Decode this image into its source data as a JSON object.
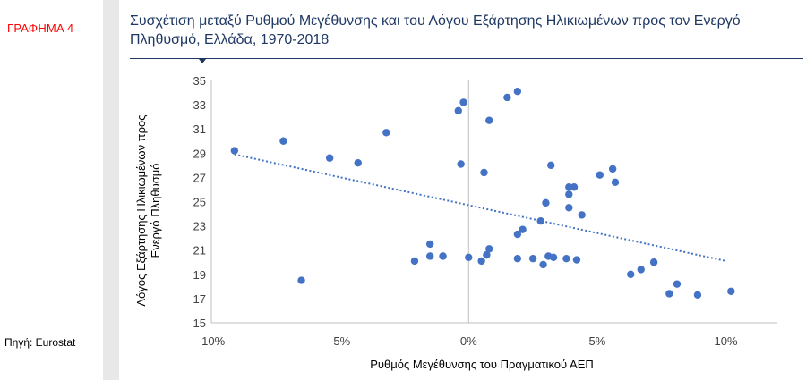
{
  "sidebar": {
    "figure_label": "ΓΡΑΦΗΜΑ 4",
    "source": "Πηγή: Eurostat"
  },
  "colors": {
    "figure_label": "#ff0000",
    "title": "#1f3864",
    "points": "#4472c4",
    "trendline": "#4472c4",
    "gutter": "#e8e8e8"
  },
  "chart_data": {
    "type": "scatter",
    "title": "Συσχέτιση μεταξύ Ρυθμού Μεγέθυνσης και του Λόγου Εξάρτησης Ηλικιωμένων προς τον Ενεργό Πληθυσμό, Ελλάδα, 1970-2018",
    "xlabel": "Ρυθμός Μεγέθυνσης  του Πραγματικού ΑΕΠ",
    "ylabel_lines": [
      "Λόγος Εξάρτησης Ηλικιωμένων προς",
      "Ενεργό Πληθυσμό"
    ],
    "xlim": [
      -0.1,
      0.12
    ],
    "ylim": [
      15,
      35
    ],
    "x_ticks": [
      -0.1,
      -0.05,
      0.0,
      0.05,
      0.1
    ],
    "x_tick_labels": [
      "-10%",
      "-5%",
      "0%",
      "5%",
      "10%"
    ],
    "y_ticks": [
      15,
      17,
      19,
      21,
      23,
      25,
      27,
      29,
      31,
      33,
      35
    ],
    "y_tick_labels": [
      "15",
      "17",
      "19",
      "21",
      "23",
      "25",
      "27",
      "29",
      "31",
      "33",
      "35"
    ],
    "grid": false,
    "legend": "none",
    "trendline": {
      "style": "dotted",
      "x": [
        -0.091,
        0.1
      ],
      "y": [
        28.9,
        20.1
      ]
    },
    "points": [
      [
        -0.091,
        29.2
      ],
      [
        -0.072,
        30.0
      ],
      [
        -0.065,
        18.5
      ],
      [
        -0.054,
        28.6
      ],
      [
        -0.043,
        28.2
      ],
      [
        -0.032,
        30.7
      ],
      [
        -0.021,
        20.1
      ],
      [
        -0.015,
        21.5
      ],
      [
        -0.015,
        20.5
      ],
      [
        -0.01,
        20.5
      ],
      [
        -0.01,
        20.5
      ],
      [
        0.0,
        20.4
      ],
      [
        -0.004,
        32.5
      ],
      [
        -0.002,
        33.2
      ],
      [
        -0.003,
        28.1
      ],
      [
        0.005,
        20.1
      ],
      [
        0.006,
        27.4
      ],
      [
        0.007,
        20.6
      ],
      [
        0.008,
        21.1
      ],
      [
        0.008,
        31.7
      ],
      [
        0.015,
        33.6
      ],
      [
        0.019,
        34.1
      ],
      [
        0.019,
        22.3
      ],
      [
        0.019,
        20.3
      ],
      [
        0.021,
        22.7
      ],
      [
        0.025,
        20.3
      ],
      [
        0.028,
        23.4
      ],
      [
        0.029,
        19.8
      ],
      [
        0.03,
        24.9
      ],
      [
        0.031,
        20.5
      ],
      [
        0.032,
        28.0
      ],
      [
        0.033,
        20.4
      ],
      [
        0.038,
        20.3
      ],
      [
        0.039,
        26.2
      ],
      [
        0.039,
        25.6
      ],
      [
        0.039,
        24.5
      ],
      [
        0.041,
        26.2
      ],
      [
        0.042,
        20.2
      ],
      [
        0.044,
        23.9
      ],
      [
        0.051,
        27.2
      ],
      [
        0.056,
        27.7
      ],
      [
        0.057,
        26.6
      ],
      [
        0.063,
        19.0
      ],
      [
        0.067,
        19.4
      ],
      [
        0.072,
        20.0
      ],
      [
        0.078,
        17.4
      ],
      [
        0.081,
        18.2
      ],
      [
        0.089,
        17.3
      ],
      [
        0.102,
        17.6
      ]
    ]
  }
}
